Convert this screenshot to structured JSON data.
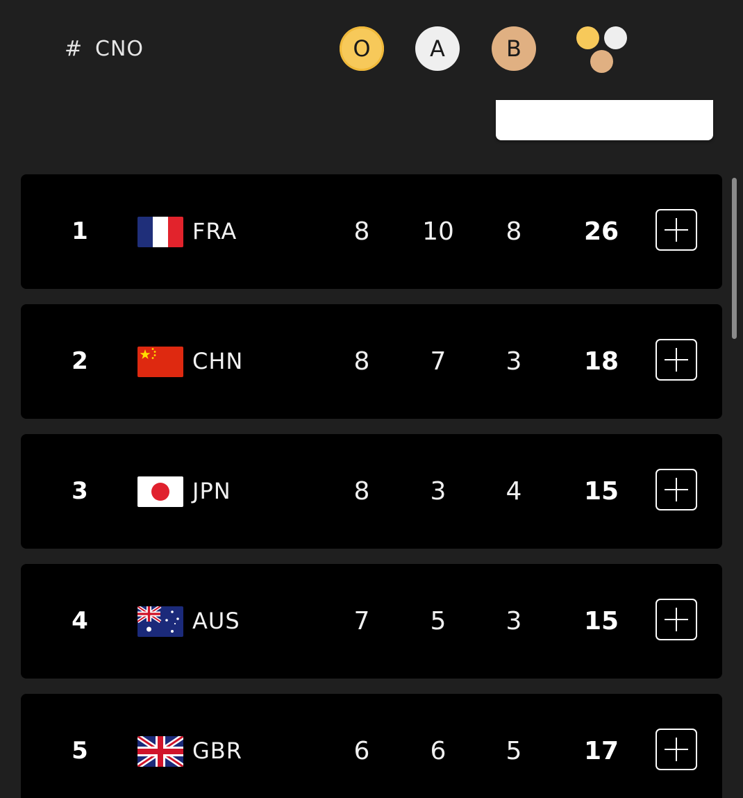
{
  "header": {
    "hash_label": "#",
    "cno_label": "CNO",
    "gold_label": "O",
    "silver_label": "A",
    "bronze_label": "B",
    "total_icon": "medals-total-icon"
  },
  "colors": {
    "gold": "#f7c95a",
    "silver": "#efefef",
    "bronze": "#e0b082",
    "row_bg": "#000000",
    "page_bg": "#1f1f1f"
  },
  "rows": [
    {
      "rank": "1",
      "flag": "france-flag-icon",
      "code": "FRA",
      "gold": "8",
      "silver": "10",
      "bronze": "8",
      "total": "26"
    },
    {
      "rank": "2",
      "flag": "china-flag-icon",
      "code": "CHN",
      "gold": "8",
      "silver": "7",
      "bronze": "3",
      "total": "18"
    },
    {
      "rank": "3",
      "flag": "japan-flag-icon",
      "code": "JPN",
      "gold": "8",
      "silver": "3",
      "bronze": "4",
      "total": "15"
    },
    {
      "rank": "4",
      "flag": "australia-flag-icon",
      "code": "AUS",
      "gold": "7",
      "silver": "5",
      "bronze": "3",
      "total": "15"
    },
    {
      "rank": "5",
      "flag": "uk-flag-icon",
      "code": "GBR",
      "gold": "6",
      "silver": "6",
      "bronze": "5",
      "total": "17"
    }
  ]
}
